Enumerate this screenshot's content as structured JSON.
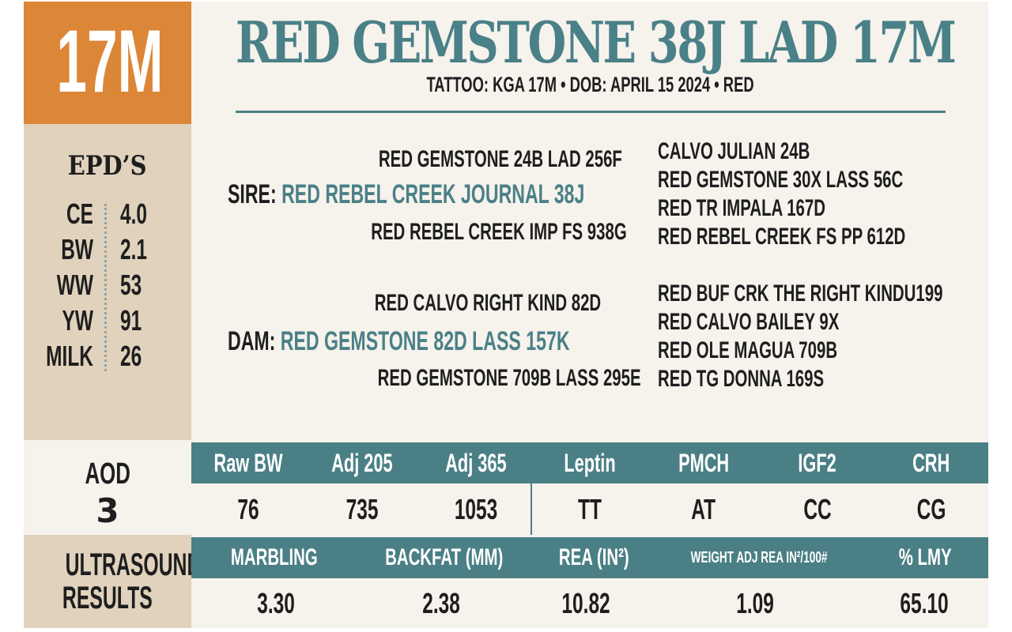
{
  "lot": "17M",
  "title": "RED GEMSTONE 38J LAD 17M",
  "subtitle": "TATTOO: KGA 17M • DOB: APRIL 15 2024 • RED",
  "epds": {
    "heading": "EPD’S",
    "rows": [
      {
        "label": "CE",
        "value": "4.0"
      },
      {
        "label": "BW",
        "value": "2.1"
      },
      {
        "label": "WW",
        "value": "53"
      },
      {
        "label": "YW",
        "value": "91"
      },
      {
        "label": "MILK",
        "value": "26"
      }
    ]
  },
  "pedigree": {
    "sire_label": "SIRE:",
    "sire": "RED REBEL CREEK JOURNAL 38J",
    "sire_sire": "RED GEMSTONE 24B LAD 256F",
    "sire_dam": "RED REBEL CREEK IMP FS 938G",
    "sire_gp": [
      "CALVO JULIAN 24B",
      "RED GEMSTONE 30X LASS 56C",
      "RED TR IMPALA 167D",
      "RED REBEL CREEK FS PP 612D"
    ],
    "dam_label": "DAM:",
    "dam": "RED GEMSTONE 82D LASS 157K",
    "dam_sire": "RED CALVO RIGHT KIND 82D",
    "dam_dam": "RED GEMSTONE 709B LASS 295E",
    "dam_gp": [
      "RED BUF CRK THE RIGHT KINDU199",
      "RED CALVO BAILEY 9X",
      "RED OLE MAGUA 709B",
      "RED TG DONNA 169S"
    ]
  },
  "aod": {
    "label": "AOD",
    "value": "3"
  },
  "performance": {
    "headers": [
      "Raw BW",
      "Adj 205",
      "Adj 365",
      "Leptin",
      "PMCH",
      "IGF2",
      "CRH"
    ],
    "values": [
      "76",
      "735",
      "1053",
      "TT",
      "AT",
      "CC",
      "CG"
    ]
  },
  "ultrasound": {
    "label_1": "ULTRASOUND",
    "label_2": "RESULTS",
    "headers": [
      "MARBLING",
      "BACKFAT (MM)",
      "REA (IN²)",
      "WEIGHT ADJ REA IN²/100#",
      "% LMY"
    ],
    "values": [
      "3.30",
      "2.38",
      "10.82",
      "1.09",
      "65.10"
    ]
  },
  "colors": {
    "orange": "#dc8637",
    "teal": "#4a7f85",
    "tan": "#e1d2bd",
    "cream": "#f6f2ec"
  }
}
